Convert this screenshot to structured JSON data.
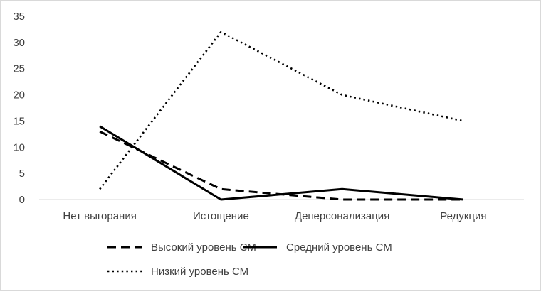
{
  "chart_data": {
    "type": "line",
    "categories": [
      "Нет выгорания",
      "Истощение",
      "Деперсонализация",
      "Редукция"
    ],
    "ylim": [
      0,
      35
    ],
    "yticks": [
      0,
      5,
      10,
      15,
      20,
      25,
      30,
      35
    ],
    "grid": false,
    "legend_position": "bottom",
    "series": [
      {
        "name": "Высокий уровень СМ",
        "values": [
          13,
          2,
          0,
          0
        ],
        "style": "dashed",
        "color": "#000000"
      },
      {
        "name": "Средний уровень СМ",
        "values": [
          14,
          0,
          2,
          0
        ],
        "style": "solid",
        "color": "#000000"
      },
      {
        "name": "Низкий уровень СМ",
        "values": [
          2,
          32,
          20,
          15
        ],
        "style": "dotted",
        "color": "#000000"
      }
    ]
  }
}
